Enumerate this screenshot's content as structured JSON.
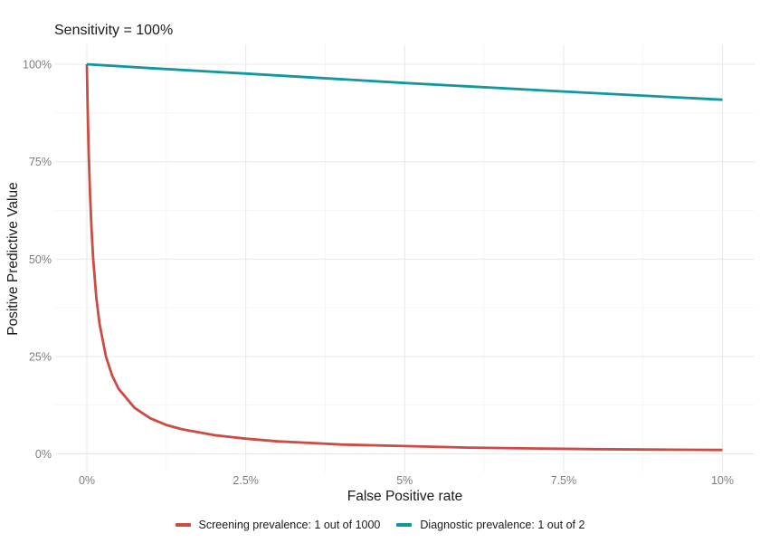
{
  "chart_data": {
    "type": "line",
    "title": "Sensitivity = 100%",
    "xlabel": "False Positive rate",
    "ylabel": "Positive Predictive Value",
    "xlim": [
      0,
      10
    ],
    "ylim": [
      0,
      100
    ],
    "grid": true,
    "legend_position": "bottom",
    "x_ticks": {
      "values": [
        0,
        2.5,
        5,
        7.5,
        10
      ],
      "labels": [
        "0%",
        "2.5%",
        "5%",
        "7.5%",
        "10%"
      ]
    },
    "y_ticks": {
      "values": [
        0,
        25,
        50,
        75,
        100
      ],
      "labels": [
        "0%",
        "25%",
        "50%",
        "75%",
        "100%"
      ]
    },
    "x_minor": [
      1.25,
      3.75,
      6.25,
      8.75
    ],
    "y_minor": [
      12.5,
      37.5,
      62.5,
      87.5
    ],
    "series": [
      {
        "id": "screening",
        "name": "Screening prevalence: 1 out of 1000",
        "color": "#cc4b42",
        "points": [
          [
            0,
            100
          ],
          [
            0.01,
            90.9
          ],
          [
            0.02,
            83.4
          ],
          [
            0.03,
            76.9
          ],
          [
            0.05,
            66.7
          ],
          [
            0.075,
            57.2
          ],
          [
            0.1,
            50.0
          ],
          [
            0.15,
            40.0
          ],
          [
            0.2,
            33.4
          ],
          [
            0.3,
            25.0
          ],
          [
            0.4,
            20.0
          ],
          [
            0.5,
            16.7
          ],
          [
            0.75,
            11.8
          ],
          [
            1,
            9.1
          ],
          [
            1.25,
            7.4
          ],
          [
            1.5,
            6.3
          ],
          [
            2,
            4.8
          ],
          [
            2.5,
            3.9
          ],
          [
            3,
            3.2
          ],
          [
            3.5,
            2.8
          ],
          [
            4,
            2.4
          ],
          [
            5,
            2.0
          ],
          [
            6,
            1.6
          ],
          [
            7,
            1.4
          ],
          [
            8,
            1.2
          ],
          [
            9,
            1.1
          ],
          [
            10,
            1.0
          ]
        ]
      },
      {
        "id": "diagnostic",
        "name": "Diagnostic prevalence: 1 out of 2",
        "color": "#0f98a0",
        "points": [
          [
            0,
            100
          ],
          [
            1,
            99.0
          ],
          [
            2.5,
            97.6
          ],
          [
            5,
            95.2
          ],
          [
            7.5,
            93.0
          ],
          [
            10,
            90.9
          ]
        ]
      }
    ],
    "colors": {
      "grid_major": "#e9e9e9",
      "grid_minor": "#f4f4f4",
      "tick_text": "#7d7d7d",
      "title_text": "#1a1a1a",
      "background": "#ffffff"
    }
  }
}
